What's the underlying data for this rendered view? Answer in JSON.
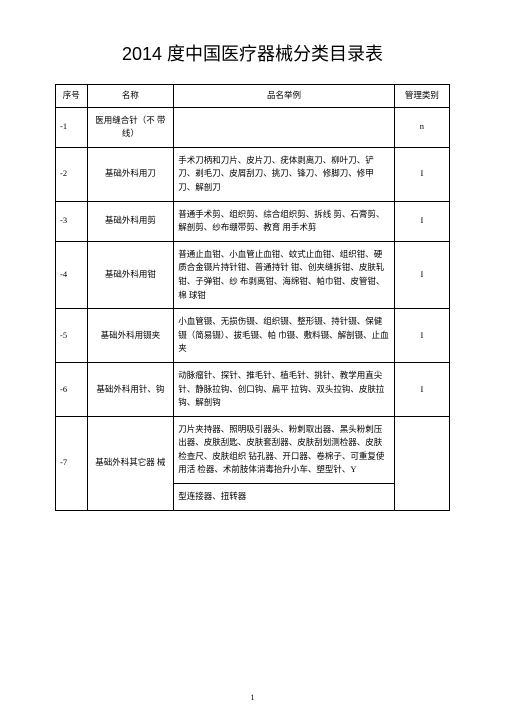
{
  "title": "2014 度中国医疗器械分类目录表",
  "headers": {
    "seq": "序号",
    "name": "名称",
    "example": "品名举例",
    "mgmt": "管理类别"
  },
  "rows": [
    {
      "seq": "-1",
      "name": "医用缝合针（不 带\n线）",
      "example": "",
      "mgmt": "n"
    },
    {
      "seq": "-2",
      "name": "基础外科用刀",
      "example": "手术刀柄和刀片、皮片刀、疣体剥离刀、柳叶刀、铲刀、剃毛刀、皮屑刮刀、挑刀、锋刀、修脚刀、修甲刀、解剖刀",
      "mgmt": "I"
    },
    {
      "seq": "-3",
      "name": "基础外科用剪",
      "example": "普通手术剪、组织剪、综合组织剪、拆线 剪、石膏剪、解剖剪、纱布绷带剪、教育 用手术剪",
      "mgmt": "I"
    },
    {
      "seq": "-4",
      "name": "基础外科用钳",
      "example": "普通止血钳、小血管止血钳、蚊式止血钳、组织钳、硬质合金镊片持针钳、普通持针 钳、创夹缝拆钳、皮肤轧钳、子弹钳、纱 布剥离钳、海绵钳、帕巾钳、皮管钳、棉 球钳",
      "mgmt": "I"
    },
    {
      "seq": "-5",
      "name": "基础外科用镊夹",
      "example": "小血管镊、无损伤镊、组织镊、整形镊、持针镊、保健镊（简易镊）、拔毛镊、帕 巾镊、敷料镊、解剖镊、止血夹",
      "mgmt": "I"
    },
    {
      "seq": "-6",
      "name": "基础外科用针、钩",
      "example": "动脉瘤针、探针、推毛针、植毛针、挑针、教学用直尖针、静脉拉钩、创口钩、扁平 拉钩、双头拉钩、皮肤拉钩、解剖钩",
      "mgmt": "I"
    },
    {
      "seq": "-7",
      "name": "基础外科其它器 械",
      "example_rows": [
        "刀片夹持器、照明吸引器头、粉刺取出器、黑头粉刺压出器、皮肤刮匙、皮肤套刮器、皮肤刮划测检器、皮肤检查尺、皮肤组织 钻孔器、开口器、卷棉子、可重复使用活 检器、术前肢体消毒抬升小车、塑型针、Y",
        "型连接器、扭转器"
      ],
      "mgmt": ""
    }
  ],
  "page_number": "1"
}
